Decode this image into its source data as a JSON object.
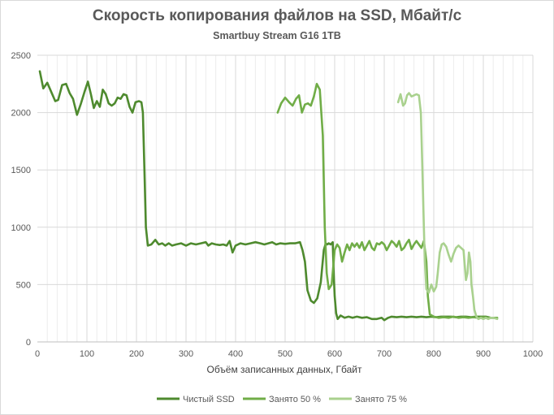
{
  "chart_data": {
    "type": "line",
    "title": "Скорость копирования файлов на SSD, Мбайт/с",
    "subtitle": "Smartbuy Stream  G16 1TB",
    "xlabel": "Объём записанных данных, Гбайт",
    "ylabel": "",
    "xlim": [
      0,
      1000
    ],
    "ylim": [
      0,
      2500
    ],
    "xticks": [
      0,
      100,
      200,
      300,
      400,
      500,
      600,
      700,
      800,
      900,
      1000
    ],
    "yticks": [
      0,
      500,
      1000,
      1500,
      2000,
      2500
    ],
    "grid": true,
    "legend_position": "bottom",
    "series": [
      {
        "name": "Чистый SSD",
        "color": "#4e8a2e",
        "points": [
          [
            5,
            2360
          ],
          [
            12,
            2210
          ],
          [
            20,
            2260
          ],
          [
            28,
            2180
          ],
          [
            36,
            2100
          ],
          [
            42,
            2110
          ],
          [
            50,
            2240
          ],
          [
            58,
            2250
          ],
          [
            65,
            2170
          ],
          [
            72,
            2120
          ],
          [
            80,
            1980
          ],
          [
            88,
            2080
          ],
          [
            95,
            2180
          ],
          [
            102,
            2270
          ],
          [
            108,
            2160
          ],
          [
            114,
            2040
          ],
          [
            120,
            2100
          ],
          [
            126,
            2050
          ],
          [
            132,
            2200
          ],
          [
            138,
            2160
          ],
          [
            144,
            2080
          ],
          [
            150,
            2060
          ],
          [
            156,
            2080
          ],
          [
            162,
            2130
          ],
          [
            168,
            2120
          ],
          [
            174,
            2160
          ],
          [
            180,
            2150
          ],
          [
            186,
            2050
          ],
          [
            192,
            2000
          ],
          [
            198,
            2090
          ],
          [
            205,
            2100
          ],
          [
            210,
            2090
          ],
          [
            213,
            2000
          ],
          [
            216,
            1500
          ],
          [
            219,
            1000
          ],
          [
            223,
            840
          ],
          [
            230,
            850
          ],
          [
            238,
            890
          ],
          [
            245,
            850
          ],
          [
            252,
            860
          ],
          [
            258,
            840
          ],
          [
            265,
            860
          ],
          [
            272,
            840
          ],
          [
            280,
            850
          ],
          [
            290,
            860
          ],
          [
            300,
            840
          ],
          [
            310,
            860
          ],
          [
            320,
            850
          ],
          [
            330,
            860
          ],
          [
            340,
            870
          ],
          [
            345,
            840
          ],
          [
            352,
            860
          ],
          [
            360,
            850
          ],
          [
            368,
            845
          ],
          [
            375,
            850
          ],
          [
            382,
            840
          ],
          [
            388,
            880
          ],
          [
            394,
            780
          ],
          [
            400,
            840
          ],
          [
            410,
            860
          ],
          [
            420,
            850
          ],
          [
            430,
            860
          ],
          [
            440,
            870
          ],
          [
            450,
            860
          ],
          [
            458,
            850
          ],
          [
            466,
            860
          ],
          [
            474,
            870
          ],
          [
            482,
            850
          ],
          [
            490,
            860
          ],
          [
            500,
            855
          ],
          [
            510,
            860
          ],
          [
            520,
            860
          ],
          [
            530,
            870
          ],
          [
            535,
            800
          ],
          [
            540,
            700
          ],
          [
            545,
            450
          ],
          [
            552,
            360
          ],
          [
            558,
            340
          ],
          [
            565,
            380
          ],
          [
            572,
            520
          ],
          [
            578,
            800
          ],
          [
            582,
            860
          ],
          [
            585,
            850
          ],
          [
            588,
            860
          ],
          [
            592,
            850
          ],
          [
            596,
            870
          ],
          [
            598,
            600
          ],
          [
            600,
            400
          ],
          [
            603,
            250
          ],
          [
            606,
            200
          ],
          [
            612,
            230
          ],
          [
            620,
            210
          ],
          [
            628,
            220
          ],
          [
            636,
            210
          ],
          [
            645,
            220
          ],
          [
            655,
            210
          ],
          [
            665,
            215
          ],
          [
            675,
            200
          ],
          [
            685,
            200
          ],
          [
            695,
            210
          ],
          [
            700,
            190
          ],
          [
            708,
            210
          ],
          [
            715,
            220
          ],
          [
            725,
            215
          ],
          [
            735,
            220
          ],
          [
            745,
            215
          ],
          [
            755,
            220
          ],
          [
            765,
            215
          ],
          [
            775,
            220
          ],
          [
            785,
            215
          ],
          [
            795,
            220
          ],
          [
            805,
            215
          ],
          [
            815,
            220
          ],
          [
            825,
            220
          ],
          [
            835,
            220
          ],
          [
            845,
            215
          ],
          [
            855,
            220
          ],
          [
            865,
            220
          ],
          [
            875,
            215
          ],
          [
            885,
            220
          ],
          [
            895,
            220
          ],
          [
            905,
            220
          ],
          [
            915,
            210
          ],
          [
            925,
            210
          ]
        ]
      },
      {
        "name": "Занято 50 %",
        "color": "#70ad47",
        "points": [
          [
            485,
            2000
          ],
          [
            492,
            2080
          ],
          [
            500,
            2130
          ],
          [
            508,
            2090
          ],
          [
            515,
            2060
          ],
          [
            522,
            2120
          ],
          [
            528,
            2150
          ],
          [
            534,
            2000
          ],
          [
            540,
            2070
          ],
          [
            546,
            2080
          ],
          [
            552,
            2060
          ],
          [
            558,
            2140
          ],
          [
            564,
            2250
          ],
          [
            570,
            2200
          ],
          [
            576,
            1800
          ],
          [
            580,
            1000
          ],
          [
            584,
            600
          ],
          [
            588,
            460
          ],
          [
            594,
            500
          ],
          [
            600,
            800
          ],
          [
            605,
            850
          ],
          [
            610,
            820
          ],
          [
            615,
            700
          ],
          [
            620,
            780
          ],
          [
            625,
            850
          ],
          [
            630,
            800
          ],
          [
            635,
            860
          ],
          [
            640,
            830
          ],
          [
            645,
            860
          ],
          [
            650,
            820
          ],
          [
            655,
            870
          ],
          [
            660,
            800
          ],
          [
            665,
            840
          ],
          [
            670,
            880
          ],
          [
            675,
            820
          ],
          [
            680,
            800
          ],
          [
            685,
            860
          ],
          [
            690,
            850
          ],
          [
            695,
            870
          ],
          [
            700,
            850
          ],
          [
            705,
            800
          ],
          [
            710,
            840
          ],
          [
            715,
            880
          ],
          [
            720,
            860
          ],
          [
            725,
            830
          ],
          [
            730,
            880
          ],
          [
            735,
            800
          ],
          [
            740,
            820
          ],
          [
            745,
            860
          ],
          [
            750,
            890
          ],
          [
            755,
            810
          ],
          [
            760,
            850
          ],
          [
            765,
            880
          ],
          [
            770,
            850
          ],
          [
            775,
            820
          ],
          [
            780,
            880
          ],
          [
            785,
            700
          ],
          [
            788,
            400
          ],
          [
            792,
            240
          ],
          [
            800,
            220
          ],
          [
            810,
            210
          ],
          [
            820,
            215
          ],
          [
            830,
            210
          ],
          [
            840,
            220
          ],
          [
            850,
            210
          ],
          [
            860,
            215
          ],
          [
            870,
            210
          ],
          [
            880,
            215
          ],
          [
            890,
            210
          ],
          [
            900,
            215
          ],
          [
            910,
            210
          ],
          [
            920,
            210
          ],
          [
            928,
            210
          ]
        ]
      },
      {
        "name": "Занято 75 %",
        "color": "#a9d18e",
        "points": [
          [
            728,
            2090
          ],
          [
            733,
            2160
          ],
          [
            738,
            2060
          ],
          [
            742,
            2080
          ],
          [
            746,
            2150
          ],
          [
            750,
            2170
          ],
          [
            755,
            2140
          ],
          [
            760,
            2150
          ],
          [
            765,
            2160
          ],
          [
            770,
            2150
          ],
          [
            774,
            2000
          ],
          [
            777,
            1500
          ],
          [
            780,
            1000
          ],
          [
            782,
            700
          ],
          [
            785,
            460
          ],
          [
            790,
            430
          ],
          [
            795,
            500
          ],
          [
            800,
            440
          ],
          [
            805,
            480
          ],
          [
            808,
            600
          ],
          [
            812,
            780
          ],
          [
            816,
            850
          ],
          [
            820,
            860
          ],
          [
            825,
            830
          ],
          [
            830,
            760
          ],
          [
            835,
            700
          ],
          [
            840,
            770
          ],
          [
            845,
            820
          ],
          [
            850,
            840
          ],
          [
            855,
            820
          ],
          [
            860,
            800
          ],
          [
            865,
            540
          ],
          [
            868,
            600
          ],
          [
            871,
            780
          ],
          [
            874,
            700
          ],
          [
            876,
            500
          ],
          [
            879,
            400
          ],
          [
            882,
            280
          ],
          [
            886,
            220
          ],
          [
            890,
            200
          ],
          [
            895,
            210
          ],
          [
            900,
            200
          ],
          [
            905,
            210
          ],
          [
            910,
            200
          ],
          [
            915,
            210
          ],
          [
            920,
            210
          ],
          [
            928,
            200
          ]
        ]
      }
    ]
  }
}
